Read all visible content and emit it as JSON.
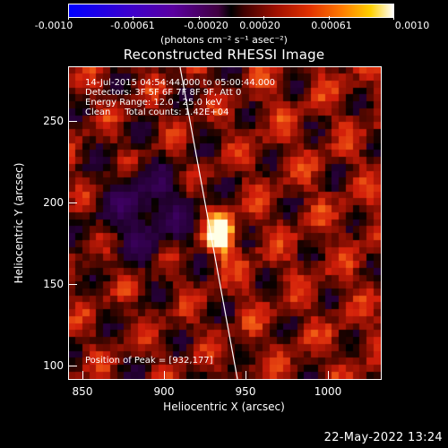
{
  "colorbar": {
    "ticks": [
      "-0.0010",
      "-0.00061",
      "-0.00020",
      "0.00020",
      "0.00061",
      "0.0010"
    ],
    "unit_label": "(photons cm⁻² s⁻¹ asec⁻²)"
  },
  "title": "Reconstructed RHESSI Image",
  "info": {
    "time_range": "14-Jul-2015 04:54:44.000 to 05:00:44.000",
    "detectors": "Detectors: 3F 5F 6F 7F 8F 9F, Att 0",
    "energy": "Energy Range: 12.0 - 25.0 keV",
    "clean": "Clean     Total counts: 1.42E+04"
  },
  "peak": "Position of Peak = [932,177]",
  "x_axis": {
    "label": "Heliocentric X (arcsec)",
    "ticks": [
      "850",
      "900",
      "950",
      "1000"
    ],
    "range": [
      840,
      1035
    ]
  },
  "y_axis": {
    "label": "Heliocentric Y (arcsec)",
    "ticks": [
      "250",
      "200",
      "150",
      "100"
    ],
    "range": [
      90,
      285
    ]
  },
  "date_stamp": "22-May-2022 13:24",
  "colors": {
    "background": "#000000",
    "text": "#ffffff"
  }
}
